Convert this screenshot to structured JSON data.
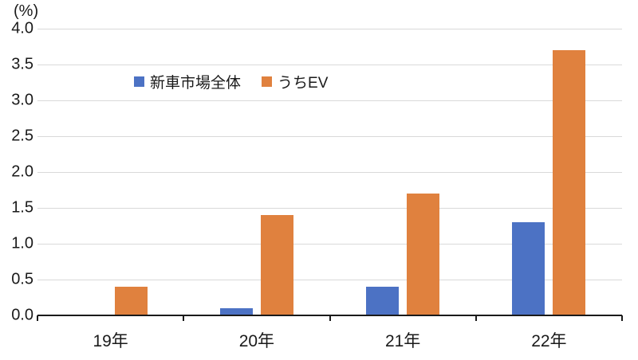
{
  "chart_data": {
    "type": "bar",
    "title": "",
    "unit_label": "(%)",
    "categories": [
      "19年",
      "20年",
      "21年",
      "22年"
    ],
    "series": [
      {
        "key": "new-car-market-total",
        "name": "新車市場全体",
        "color": "#4C72C4",
        "values": [
          0.0,
          0.1,
          0.4,
          1.3
        ]
      },
      {
        "key": "ev-share",
        "name": "うちEV",
        "color": "#E0813E",
        "values": [
          0.4,
          1.4,
          1.7,
          3.7
        ]
      }
    ],
    "ylim": [
      0.0,
      4.0
    ],
    "y_tick_labels": [
      "4.0",
      "3.5",
      "3.0",
      "2.5",
      "2.0",
      "1.5",
      "1.0",
      "0.5",
      "0.0"
    ],
    "y_tick_values": [
      4.0,
      3.5,
      3.0,
      2.5,
      2.0,
      1.5,
      1.0,
      0.5,
      0.0
    ],
    "grid": true,
    "gridline_color": "#D9D9D9",
    "axis_color": "#1A1A1A",
    "legend_position": "top-center"
  }
}
